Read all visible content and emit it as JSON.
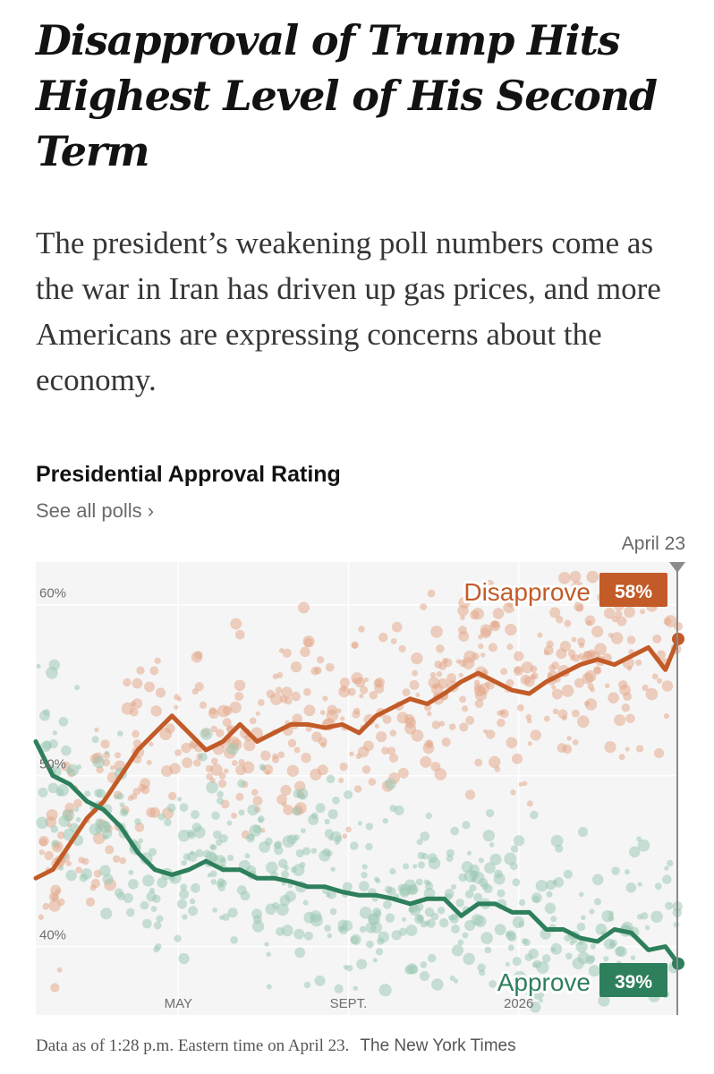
{
  "headline": "Disapproval of Trump Hits Highest Level of His Second Term",
  "summary": "The president’s weakening poll numbers come as the war in Iran has driven up gas prices, and more Americans are expressing concerns about the economy.",
  "footer": {
    "note": "Data as of 1:28 p.m. Eastern time on April 23.",
    "source": "The New York Times"
  },
  "colors": {
    "disapprove": "#c25b28",
    "approve": "#2e7f5c",
    "disapprove_dot": "#e4a98d",
    "approve_dot": "#9cc8b4",
    "plot_bg": "#f5f5f5",
    "grid": "#ffffff"
  },
  "chart_data": {
    "type": "line",
    "title": "Presidential Approval Rating",
    "link_text": "See all polls ›",
    "current_date_label": "April 23",
    "x_unit": "months since Jan. 20, 2025",
    "x": [
      0.0,
      0.4,
      0.8,
      1.2,
      1.6,
      2.0,
      2.4,
      2.8,
      3.2,
      3.6,
      4.0,
      4.4,
      4.8,
      5.2,
      5.6,
      6.0,
      6.4,
      6.8,
      7.2,
      7.6,
      8.0,
      8.4,
      8.8,
      9.2,
      9.6,
      10.0,
      10.4,
      10.8,
      11.2,
      11.6,
      12.0,
      12.4,
      12.8,
      13.2,
      13.6,
      14.0,
      14.4,
      14.8,
      15.1
    ],
    "series": [
      {
        "name": "Disapprove",
        "values": [
          44.0,
          44.5,
          46.0,
          47.5,
          48.5,
          50.0,
          51.5,
          52.5,
          53.5,
          52.5,
          51.5,
          52.0,
          53.0,
          52.0,
          52.5,
          53.0,
          53.0,
          52.8,
          53.0,
          52.5,
          53.5,
          54.0,
          54.5,
          54.2,
          54.8,
          55.5,
          56.0,
          55.5,
          55.0,
          54.8,
          55.5,
          56.0,
          56.5,
          56.8,
          56.5,
          57.0,
          57.5,
          56.2,
          58.0
        ],
        "end_value": 58,
        "end_label": "58%"
      },
      {
        "name": "Approve",
        "values": [
          52.0,
          50.0,
          49.5,
          48.5,
          48.0,
          47.0,
          45.5,
          44.5,
          44.2,
          44.5,
          45.0,
          44.5,
          44.5,
          44.0,
          44.0,
          43.8,
          43.5,
          43.5,
          43.2,
          43.0,
          43.0,
          42.8,
          42.5,
          42.8,
          42.8,
          41.8,
          42.5,
          42.5,
          42.0,
          42.0,
          41.0,
          41.0,
          40.5,
          40.3,
          41.0,
          40.8,
          39.8,
          40.0,
          39.0
        ],
        "end_value": 39,
        "end_label": "39%"
      }
    ],
    "x_ticks": [
      {
        "x": 3.35,
        "label": "MAY"
      },
      {
        "x": 7.35,
        "label": "SEPT."
      },
      {
        "x": 11.35,
        "label": "2026"
      }
    ],
    "y_ticks": [
      {
        "y": 40,
        "label": "40%"
      },
      {
        "y": 50,
        "label": "50%"
      },
      {
        "y": 60,
        "label": "60%"
      }
    ],
    "xlim": [
      0,
      15.1
    ],
    "ylim": [
      36,
      62.5
    ],
    "grid": true,
    "individual_polls_shown": true
  }
}
